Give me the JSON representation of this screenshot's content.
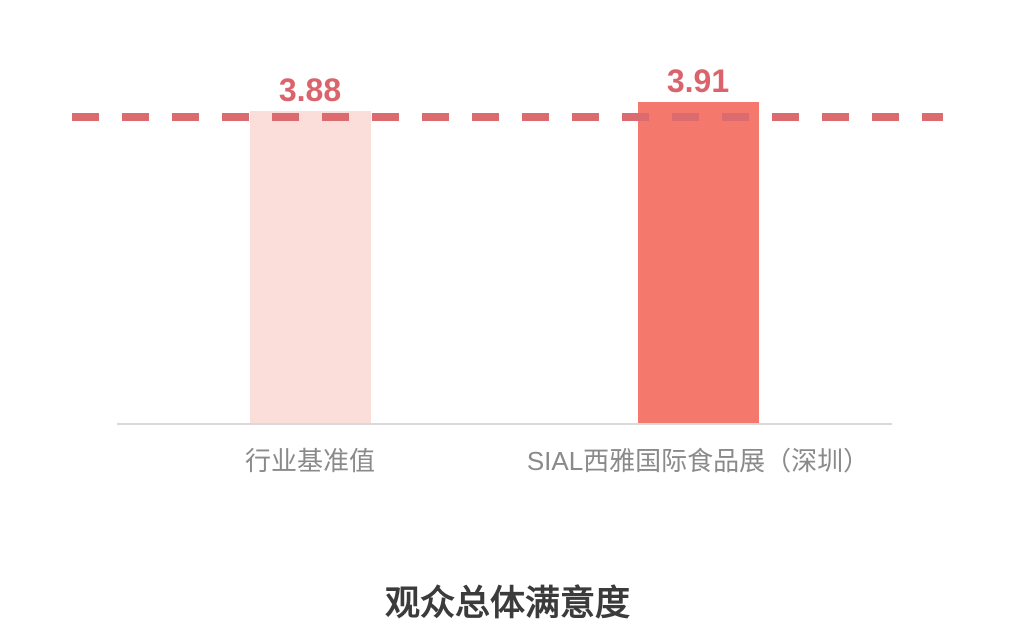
{
  "chart_data": {
    "type": "bar",
    "title": "观众总体满意度",
    "categories": [
      "行业基准值",
      "SIAL西雅国际食品展（深圳）"
    ],
    "values": [
      3.88,
      3.91
    ],
    "data_labels": [
      "3.88",
      "3.91"
    ],
    "bar_colors": [
      "#FBDDD9",
      "#F4796C"
    ],
    "value_label_color": "#DB646C",
    "benchmark_line": {
      "value": 3.88,
      "style": "dashed",
      "color": "#DC6B70"
    },
    "axis": {
      "baseline_color": "#D9D9D9",
      "category_label_color": "#8A8A8A",
      "implied_y_min": 2.84,
      "gridlines": false,
      "legend": "none",
      "y_tick_labels": "none"
    },
    "title_color": "#3B3B3B",
    "background": "#FFFFFF"
  }
}
